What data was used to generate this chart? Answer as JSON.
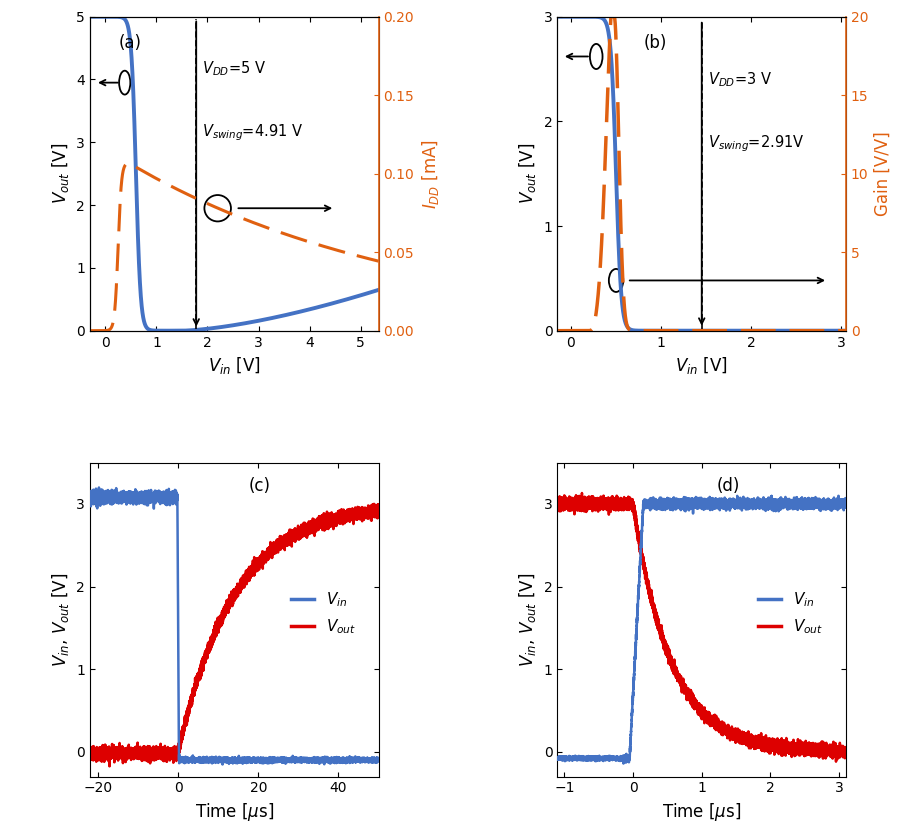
{
  "panel_a": {
    "label": "(a)",
    "vdd_text": "$V_{DD}$=5 V",
    "vswing_text": "$V_{swing}$=4.91 V",
    "vswing_x": 1.78,
    "xlabel": "$V_{in}$ [V]",
    "ylabel": "$V_{out}$ [V]",
    "ylabel2": "$I_{DD}$ [mA]",
    "xlim": [
      -0.3,
      5.35
    ],
    "ylim": [
      0,
      5.0
    ],
    "ylim2": [
      0,
      0.2
    ],
    "yticks": [
      0,
      1,
      2,
      3,
      4,
      5
    ],
    "yticks2": [
      0,
      0.05,
      0.1,
      0.15,
      0.2
    ],
    "xticks": [
      0,
      1,
      2,
      3,
      4,
      5
    ]
  },
  "panel_b": {
    "label": "(b)",
    "vdd_text": "$V_{DD}$=3 V",
    "vswing_text": "$V_{swing}$=2.91V",
    "vswing_x": 1.45,
    "xlabel": "$V_{in}$ [V]",
    "ylabel": "$V_{out}$ [V]",
    "ylabel2": "Gain [V/V]",
    "xlim": [
      -0.15,
      3.05
    ],
    "ylim": [
      0,
      3.0
    ],
    "ylim2": [
      0,
      20
    ],
    "yticks": [
      0,
      1,
      2,
      3
    ],
    "yticks2": [
      0,
      5,
      10,
      15,
      20
    ],
    "xticks": [
      0,
      1,
      2,
      3
    ]
  },
  "panel_c": {
    "label": "(c)",
    "xlabel": "Time [$\\mu$s]",
    "ylabel": "$V_{in}$, $V_{out}$ [V]",
    "xlim": [
      -22,
      50
    ],
    "ylim": [
      -0.3,
      3.5
    ],
    "yticks": [
      0,
      1,
      2,
      3
    ],
    "xticks": [
      -20,
      0,
      20,
      40
    ]
  },
  "panel_d": {
    "label": "(d)",
    "xlabel": "Time [$\\mu$s]",
    "ylabel": "$V_{in}$, $V_{out}$ [V]",
    "xlim": [
      -1.1,
      3.1
    ],
    "ylim": [
      -0.3,
      3.5
    ],
    "yticks": [
      0,
      1,
      2,
      3
    ],
    "xticks": [
      -1,
      0,
      1,
      2,
      3
    ]
  },
  "blue": "#4472C4",
  "orange": "#E06010",
  "red": "#DD0000",
  "figure_bg": "#FFFFFF"
}
